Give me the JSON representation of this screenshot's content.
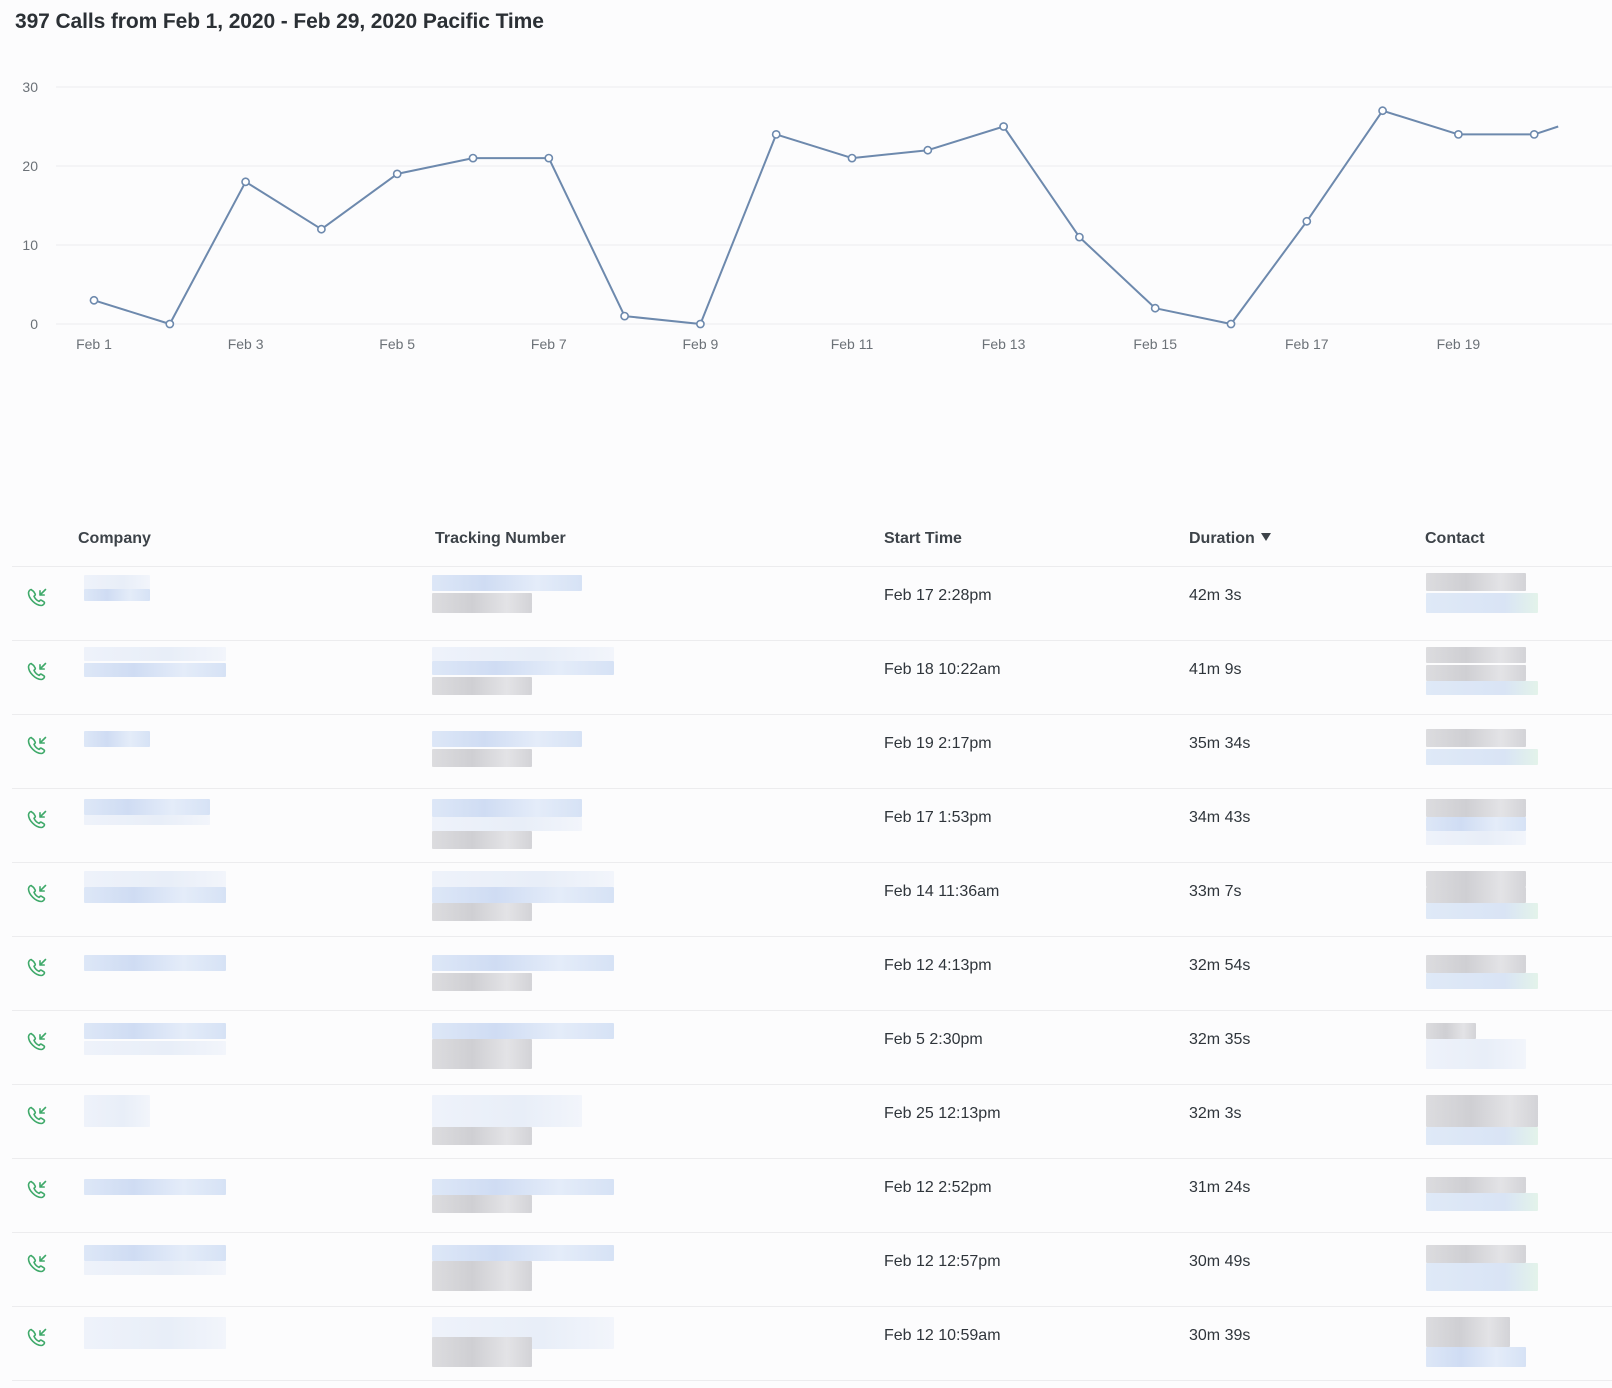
{
  "header": {
    "title": "397 Calls from Feb 1, 2020 - Feb 29, 2020 Pacific Time"
  },
  "colors": {
    "line": "#6d89ad",
    "gridline": "#ebedf0",
    "call_icon": "#3fa96a",
    "text": "#2f353b"
  },
  "chart_data": {
    "type": "line",
    "title": "",
    "xlabel": "",
    "ylabel": "",
    "grid": true,
    "legend": "none",
    "ylim": [
      0,
      30
    ],
    "y_ticks": [
      "0",
      "10",
      "20",
      "30"
    ],
    "x": [
      "Feb 1",
      "Feb 2",
      "Feb 3",
      "Feb 4",
      "Feb 5",
      "Feb 6",
      "Feb 7",
      "Feb 8",
      "Feb 9",
      "Feb 10",
      "Feb 11",
      "Feb 12",
      "Feb 13",
      "Feb 14",
      "Feb 15",
      "Feb 16",
      "Feb 17",
      "Feb 18",
      "Feb 19",
      "Feb 20"
    ],
    "x_tick_labels": [
      "Feb 1",
      "",
      "Feb 3",
      "",
      "Feb 5",
      "",
      "Feb 7",
      "",
      "Feb 9",
      "",
      "Feb 11",
      "",
      "Feb 13",
      "",
      "Feb 15",
      "",
      "Feb 17",
      "",
      "Feb 19",
      ""
    ],
    "series": [
      {
        "values": [
          3,
          0,
          18,
          12,
          19,
          21,
          21,
          1,
          0,
          24,
          21,
          22,
          25,
          11,
          2,
          0,
          13,
          27,
          24,
          24
        ]
      }
    ]
  },
  "table": {
    "columns": {
      "company": "Company",
      "tracking_number": "Tracking Number",
      "start_time": "Start Time",
      "duration": "Duration",
      "contact": "Contact"
    },
    "rows": [
      {
        "icon": "incoming-call-icon",
        "start_time": "Feb 17 2:28pm",
        "duration": "42m 3s"
      },
      {
        "icon": "incoming-call-icon",
        "start_time": "Feb 18 10:22am",
        "duration": "41m 9s"
      },
      {
        "icon": "incoming-call-icon",
        "start_time": "Feb 19 2:17pm",
        "duration": "35m 34s"
      },
      {
        "icon": "incoming-call-icon",
        "start_time": "Feb 17 1:53pm",
        "duration": "34m 43s"
      },
      {
        "icon": "incoming-call-icon",
        "start_time": "Feb 14 11:36am",
        "duration": "33m 7s"
      },
      {
        "icon": "incoming-call-icon",
        "start_time": "Feb 12 4:13pm",
        "duration": "32m 54s"
      },
      {
        "icon": "incoming-call-icon",
        "start_time": "Feb 5 2:30pm",
        "duration": "32m 35s"
      },
      {
        "icon": "incoming-call-icon",
        "start_time": "Feb 25 12:13pm",
        "duration": "32m 3s"
      },
      {
        "icon": "incoming-call-icon",
        "start_time": "Feb 12 2:52pm",
        "duration": "31m 24s"
      },
      {
        "icon": "incoming-call-icon",
        "start_time": "Feb 12 12:57pm",
        "duration": "30m 49s"
      },
      {
        "icon": "incoming-call-icon",
        "start_time": "Feb 12 10:59am",
        "duration": "30m 39s"
      }
    ]
  }
}
